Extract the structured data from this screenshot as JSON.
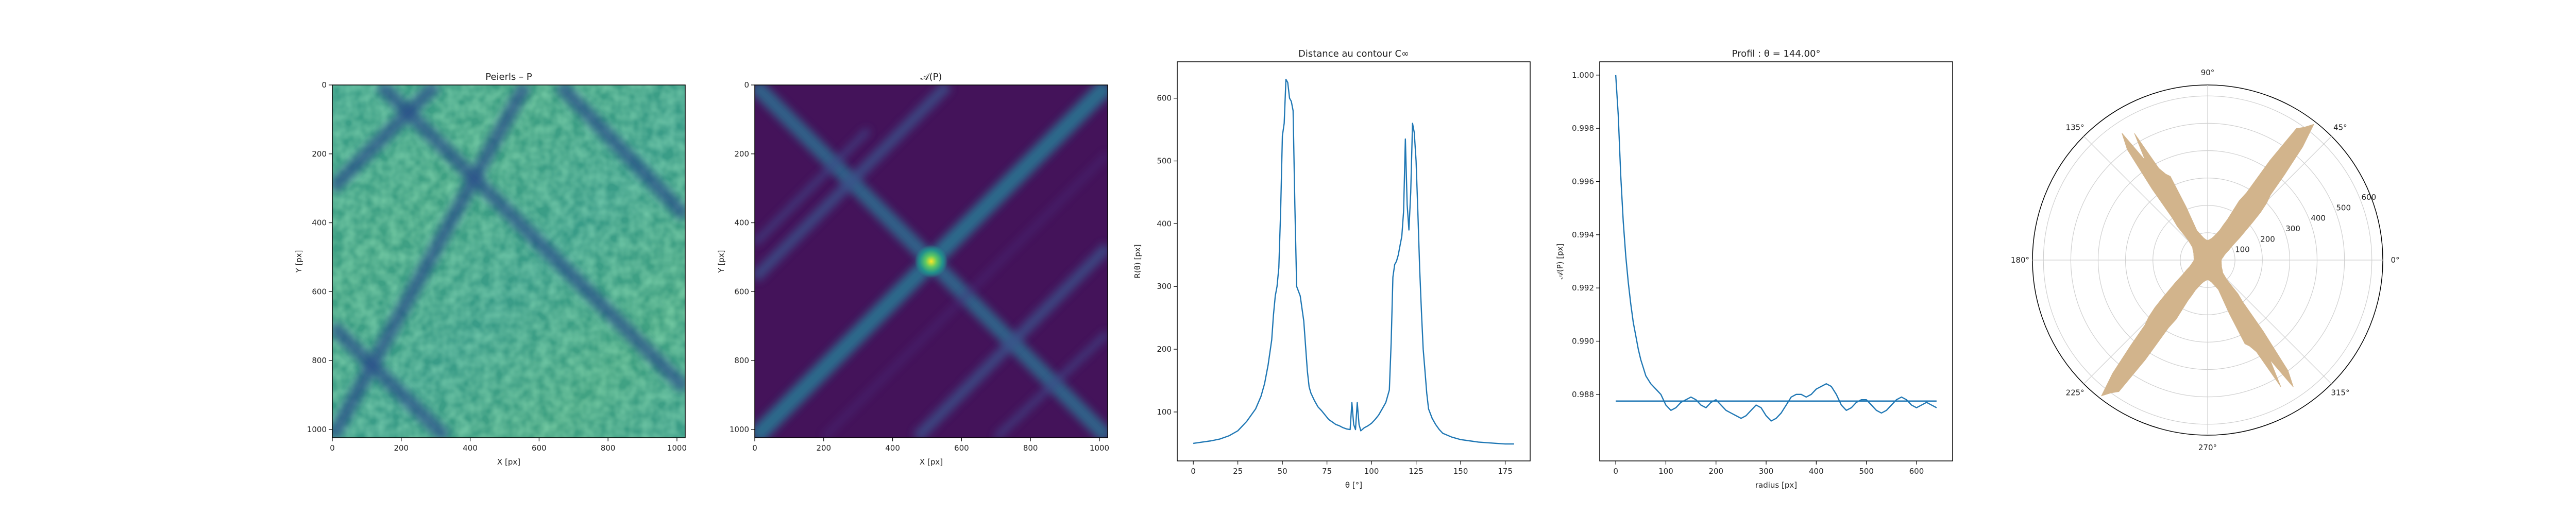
{
  "figure": {
    "panels": [
      {
        "id": "peierls",
        "title": "Peierls – P",
        "xlabel": "X [px]",
        "ylabel": "Y [px]",
        "xticks": [
          "0",
          "200",
          "400",
          "600",
          "800",
          "1000"
        ],
        "yticks": [
          "0",
          "200",
          "400",
          "600",
          "800",
          "1000"
        ],
        "colormap": "viridis"
      },
      {
        "id": "correlation",
        "title": "𝒜(P)",
        "xlabel": "X [px]",
        "ylabel": "Y [px]",
        "xticks": [
          "0",
          "200",
          "400",
          "600",
          "800",
          "1000"
        ],
        "yticks": [
          "0",
          "200",
          "400",
          "600",
          "800",
          "1000"
        ],
        "colormap": "viridis"
      }
    ]
  },
  "chart_data": [
    {
      "type": "heatmap",
      "title": "Peierls – P",
      "xlabel": "X [px]",
      "ylabel": "Y [px]",
      "xlim": [
        0,
        1024
      ],
      "ylim": [
        1024,
        0
      ],
      "colormap": "viridis",
      "description_of_content": "noisy texture with two crossing diagonal dark bands"
    },
    {
      "type": "heatmap",
      "title": "𝒜(P)",
      "xlabel": "X [px]",
      "ylabel": "Y [px]",
      "xlim": [
        0,
        1024
      ],
      "ylim": [
        1024,
        0
      ],
      "colormap": "viridis",
      "peak": {
        "x": 512,
        "y": 512
      }
    },
    {
      "type": "line",
      "title": "Distance au contour C∞",
      "xlabel": "θ [°]",
      "ylabel": "R(θ) [px]",
      "xlim": [
        -9,
        189
      ],
      "ylim": [
        22,
        658
      ],
      "xticks": [
        0,
        25,
        50,
        75,
        100,
        125,
        150,
        175
      ],
      "yticks": [
        100,
        200,
        300,
        400,
        500,
        600
      ],
      "grid": false,
      "color": "#1f77b4",
      "x": [
        0,
        5,
        10,
        15,
        20,
        25,
        30,
        35,
        38,
        40,
        42,
        44,
        45,
        46,
        47,
        48,
        49,
        50,
        51,
        52,
        53,
        54,
        55,
        56,
        57,
        58,
        60,
        62,
        64,
        65,
        66,
        68,
        70,
        72,
        74,
        76,
        78,
        80,
        82,
        84,
        86,
        88,
        89,
        90,
        91,
        92,
        93,
        94,
        96,
        98,
        100,
        102,
        104,
        106,
        108,
        110,
        111,
        112,
        113,
        114,
        115,
        116,
        117,
        118,
        119,
        120,
        121,
        122,
        123,
        124,
        125,
        126,
        127,
        128,
        129,
        130,
        131,
        132,
        134,
        136,
        138,
        140,
        145,
        150,
        155,
        160,
        165,
        170,
        175,
        180
      ],
      "y": [
        50,
        52,
        54,
        57,
        62,
        70,
        85,
        105,
        125,
        145,
        175,
        215,
        255,
        285,
        300,
        330,
        420,
        540,
        560,
        630,
        625,
        600,
        595,
        580,
        430,
        300,
        285,
        245,
        165,
        140,
        130,
        118,
        108,
        102,
        95,
        88,
        84,
        80,
        78,
        75,
        73,
        72,
        115,
        80,
        72,
        115,
        80,
        70,
        75,
        78,
        82,
        88,
        95,
        105,
        115,
        135,
        210,
        315,
        335,
        340,
        350,
        365,
        380,
        420,
        535,
        430,
        390,
        450,
        560,
        545,
        500,
        420,
        330,
        260,
        200,
        165,
        130,
        105,
        90,
        80,
        72,
        66,
        60,
        56,
        54,
        52,
        51,
        50,
        49,
        49
      ]
    },
    {
      "type": "line",
      "title": "Profil : θ = 144.00°",
      "xlabel": "radius [px]",
      "ylabel": "𝒜(P) [px]",
      "xlim": [
        -32,
        672
      ],
      "ylim": [
        0.9855,
        1.0005
      ],
      "xticks": [
        0,
        100,
        200,
        300,
        400,
        500,
        600
      ],
      "yticks": [
        0.988,
        0.99,
        0.992,
        0.994,
        0.996,
        0.998,
        1.0
      ],
      "grid": false,
      "color": "#1f77b4",
      "baseline": 0.98775,
      "x": [
        0,
        5,
        10,
        15,
        20,
        25,
        30,
        35,
        40,
        45,
        50,
        55,
        60,
        70,
        80,
        90,
        100,
        110,
        120,
        130,
        140,
        150,
        160,
        170,
        180,
        190,
        200,
        210,
        220,
        230,
        240,
        250,
        260,
        270,
        280,
        290,
        300,
        310,
        320,
        330,
        340,
        350,
        360,
        370,
        380,
        390,
        400,
        410,
        420,
        430,
        440,
        450,
        460,
        470,
        480,
        490,
        500,
        510,
        520,
        530,
        540,
        550,
        560,
        570,
        580,
        590,
        600,
        610,
        620,
        630,
        640
      ],
      "y": [
        1.0,
        0.9985,
        0.9962,
        0.9945,
        0.9932,
        0.9922,
        0.9914,
        0.9907,
        0.9902,
        0.9897,
        0.9893,
        0.989,
        0.9887,
        0.9884,
        0.9882,
        0.988,
        0.9876,
        0.9874,
        0.9875,
        0.9877,
        0.9878,
        0.9879,
        0.9878,
        0.9876,
        0.9875,
        0.9877,
        0.9878,
        0.9876,
        0.9874,
        0.9873,
        0.9872,
        0.9871,
        0.9872,
        0.9874,
        0.9876,
        0.9875,
        0.9872,
        0.987,
        0.9871,
        0.9873,
        0.9876,
        0.9879,
        0.988,
        0.988,
        0.9879,
        0.988,
        0.9882,
        0.9883,
        0.9884,
        0.9883,
        0.988,
        0.9876,
        0.9874,
        0.9875,
        0.9877,
        0.9878,
        0.9878,
        0.9876,
        0.9874,
        0.9873,
        0.9874,
        0.9876,
        0.9878,
        0.9879,
        0.9878,
        0.9876,
        0.9875,
        0.9876,
        0.9877,
        0.9876,
        0.9875
      ]
    },
    {
      "type": "polar",
      "title": "",
      "r_ticks": [
        100,
        200,
        300,
        400,
        500,
        600
      ],
      "r_max": 640,
      "theta_ticks": [
        "0°",
        "45°",
        "90°",
        "135°",
        "180°",
        "225°",
        "270°",
        "315°"
      ],
      "fill_color": "#d2b48c",
      "r_profile_deg_0_to_180": {
        "theta": [
          0,
          5,
          10,
          15,
          20,
          25,
          30,
          35,
          40,
          42,
          44,
          46,
          48,
          50,
          52,
          54,
          56,
          58,
          60,
          62,
          64,
          66,
          68,
          70,
          75,
          80,
          85,
          90,
          95,
          100,
          105,
          110,
          112,
          114,
          116,
          118,
          120,
          122,
          124,
          126,
          128,
          130,
          132,
          134,
          136,
          138,
          140,
          145,
          150,
          155,
          160,
          165,
          170,
          175,
          180
        ],
        "r": [
          50,
          52,
          57,
          62,
          70,
          85,
          105,
          145,
          215,
          260,
          300,
          330,
          420,
          540,
          630,
          600,
          580,
          430,
          285,
          245,
          165,
          140,
          118,
          108,
          90,
          80,
          75,
          72,
          75,
          82,
          95,
          115,
          210,
          335,
          350,
          380,
          535,
          430,
          560,
          500,
          330,
          200,
          165,
          105,
          90,
          80,
          72,
          66,
          60,
          56,
          54,
          52,
          51,
          50,
          50
        ]
      }
    }
  ]
}
